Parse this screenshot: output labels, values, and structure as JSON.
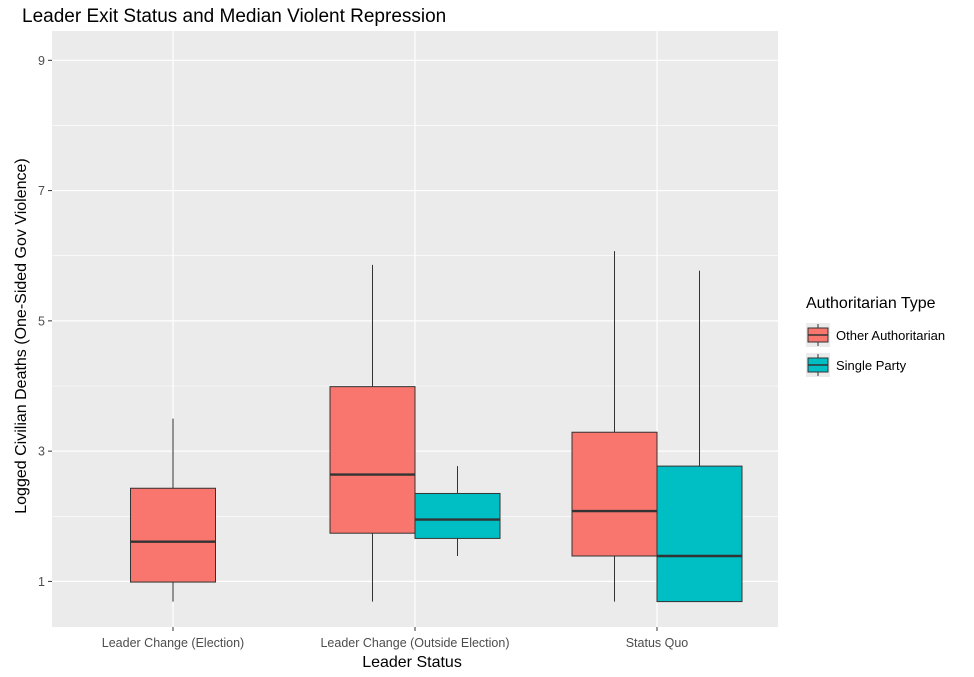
{
  "chart_data": {
    "type": "boxplot",
    "title": "Leader Exit Status and Median Violent Repression",
    "xlabel": "Leader Status",
    "ylabel": "Logged Civilian Deaths (One-Sided Gov Violence)",
    "ylim": [
      0.3,
      9.45
    ],
    "yticks": [
      1,
      3,
      5,
      7,
      9
    ],
    "categories": [
      "Leader Change (Election)",
      "Leader Change (Outside Election)",
      "Status Quo"
    ],
    "legend": {
      "title": "Authoritarian Type",
      "position": "right",
      "entries": [
        {
          "name": "Other Authoritarian",
          "color": "#f8766d"
        },
        {
          "name": "Single Party",
          "color": "#00bfc4"
        }
      ]
    },
    "series": [
      {
        "name": "Other Authoritarian",
        "color": "#f8766d",
        "boxes": [
          {
            "category": "Leader Change (Election)",
            "min": 0.69,
            "q1": 0.99,
            "median": 1.61,
            "q3": 2.43,
            "max": 3.5
          },
          {
            "category": "Leader Change (Outside Election)",
            "min": 0.69,
            "q1": 1.74,
            "median": 2.64,
            "q3": 3.99,
            "max": 5.86
          },
          {
            "category": "Status Quo",
            "min": 0.69,
            "q1": 1.39,
            "median": 2.08,
            "q3": 3.29,
            "max": 6.07
          }
        ]
      },
      {
        "name": "Single Party",
        "color": "#00bfc4",
        "boxes": [
          {
            "category": "Leader Change (Outside Election)",
            "min": 1.39,
            "q1": 1.66,
            "median": 1.95,
            "q3": 2.35,
            "max": 2.77
          },
          {
            "category": "Status Quo",
            "min": 0.69,
            "q1": 0.69,
            "median": 1.39,
            "q3": 2.77,
            "max": 5.77
          }
        ]
      }
    ],
    "grid": true
  }
}
